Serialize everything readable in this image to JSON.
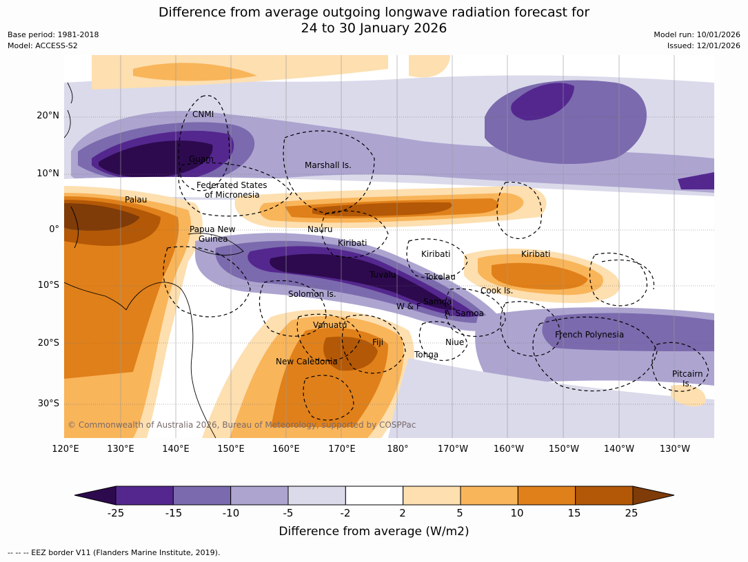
{
  "title_line1": "Difference from average outgoing longwave radiation forecast for",
  "title_line2": "24 to 30 January 2026",
  "left_meta": {
    "base_period": "Base period: 1981-2018",
    "model": "Model: ACCESS-S2"
  },
  "right_meta": {
    "model_run": "Model run: 10/01/2026",
    "issued": "Issued: 12/01/2026"
  },
  "lat_labels": [
    "20°N",
    "10°N",
    "0°",
    "10°S",
    "20°S",
    "30°S"
  ],
  "lon_labels": [
    "120°E",
    "130°E",
    "140°E",
    "150°E",
    "160°E",
    "170°E",
    "180°",
    "170°W",
    "160°W",
    "150°W",
    "140°W",
    "130°W"
  ],
  "place_labels": [
    "CNMI",
    "Guam",
    "Marshall Is.",
    "Federated States",
    "of Micronesia",
    "Palau",
    "Papua New",
    "Guinea",
    "Nauru",
    "Kiribati",
    "Kiribati",
    "Kiribati",
    "Tuvalu",
    "Tokelau",
    "Cook Is.",
    "Solomon Is.",
    "W & F",
    "Samoa",
    "A. Samoa",
    "Vanuatu",
    "Fiji",
    "Niue",
    "French Polynesia",
    "New Caledonia",
    "Tonga",
    "Pitcairn",
    "Is."
  ],
  "copyright": "© Commonwealth of Australia 2026, Bureau of Meteorology, supported by COSPPac",
  "colorbar": {
    "ticks": [
      "-25",
      "-15",
      "-10",
      "-5",
      "-2",
      "2",
      "5",
      "10",
      "15",
      "25"
    ],
    "colors": [
      "#2d0a4e",
      "#54278f",
      "#7b6aad",
      "#ada5d0",
      "#dadaeb",
      "#ffffff",
      "#fddfb0",
      "#f9b55a",
      "#e0801a",
      "#b35806",
      "#7f3b08"
    ],
    "title": "Difference from average (W/m2)"
  },
  "footer": "--  --  -- EEZ border V11 (Flanders Marine Institute, 2019)."
}
